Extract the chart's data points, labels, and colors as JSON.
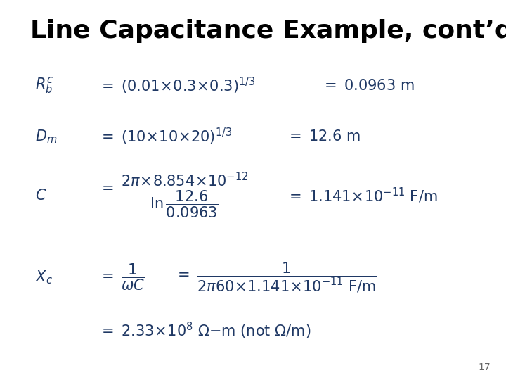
{
  "title": "Line Capacitance Example, cont’d",
  "title_fontsize": 26,
  "title_color": "#000000",
  "formula_color": "#1F3864",
  "page_number": "17",
  "background_color": "#ffffff"
}
